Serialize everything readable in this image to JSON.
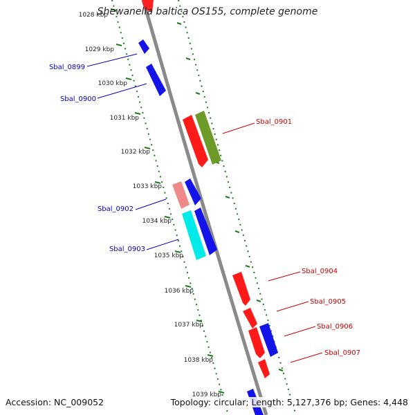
{
  "title": "Shewanella baltica OS155, complete genome",
  "footer": {
    "accession": "Accession: NC_009052",
    "info": "Topology: circular; Length: 5,127,376 bp; Genes: 4,448"
  },
  "colors": {
    "backbone": "#8a8a8a",
    "tick": "#1a7a1a",
    "forward_label": "#cc0000",
    "reverse_label": "#0000bb"
  },
  "ticks": [
    "1028 kbp",
    "1029 kbp",
    "1030 kbp",
    "1031 kbp",
    "1032 kbp",
    "1033 kbp",
    "1034 kbp",
    "1035 kbp",
    "1036 kbp",
    "1037 kbp",
    "1038 kbp",
    "1039 kbp"
  ],
  "gene_labels": [
    {
      "text": "Sbal_0899",
      "side": "left"
    },
    {
      "text": "Sbal_0900",
      "side": "left"
    },
    {
      "text": "Sbal_0901",
      "side": "right"
    },
    {
      "text": "Sbal_0902",
      "side": "left"
    },
    {
      "text": "Sbal_0903",
      "side": "left"
    },
    {
      "text": "Sbal_0904",
      "side": "right"
    },
    {
      "text": "Sbal_0905",
      "side": "right"
    },
    {
      "text": "Sbal_0906",
      "side": "right"
    },
    {
      "text": "Sbal_0907",
      "side": "right"
    }
  ]
}
